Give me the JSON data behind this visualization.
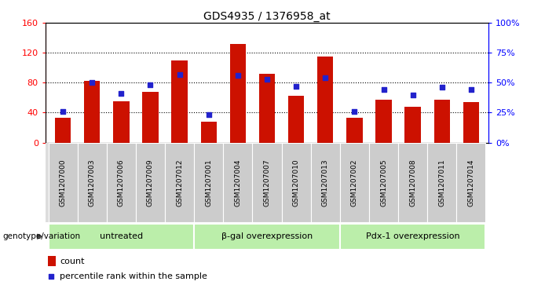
{
  "title": "GDS4935 / 1376958_at",
  "samples": [
    "GSM1207000",
    "GSM1207003",
    "GSM1207006",
    "GSM1207009",
    "GSM1207012",
    "GSM1207001",
    "GSM1207004",
    "GSM1207007",
    "GSM1207010",
    "GSM1207013",
    "GSM1207002",
    "GSM1207005",
    "GSM1207008",
    "GSM1207011",
    "GSM1207014"
  ],
  "counts": [
    33,
    82,
    55,
    68,
    110,
    28,
    132,
    92,
    62,
    115,
    33,
    57,
    48,
    57,
    54
  ],
  "percentiles": [
    26,
    50,
    41,
    48,
    57,
    23,
    56,
    53,
    47,
    54,
    26,
    44,
    40,
    46,
    44
  ],
  "groups": [
    {
      "label": "untreated",
      "start": 0,
      "end": 5
    },
    {
      "label": "β-gal overexpression",
      "start": 5,
      "end": 10
    },
    {
      "label": "Pdx-1 overexpression",
      "start": 10,
      "end": 15
    }
  ],
  "bar_color": "#cc1100",
  "dot_color": "#2222cc",
  "ylim_left": [
    0,
    160
  ],
  "ylim_right": [
    0,
    100
  ],
  "yticks_left": [
    0,
    40,
    80,
    120,
    160
  ],
  "ytick_labels_left": [
    "0",
    "40",
    "80",
    "120",
    "160"
  ],
  "yticks_right": [
    0,
    25,
    50,
    75,
    100
  ],
  "ytick_labels_right": [
    "0%",
    "25%",
    "50%",
    "75%",
    "100%"
  ],
  "group_bg_color": "#bbeeaa",
  "tick_bg_color": "#cccccc",
  "legend_count_color": "#cc1100",
  "legend_dot_color": "#2222cc",
  "legend_count_label": "count",
  "legend_dot_label": "percentile rank within the sample",
  "genotype_label": "genotype/variation",
  "bar_width": 0.55,
  "gridline_color": "#000000",
  "gridline_ticks": [
    40,
    80,
    120
  ]
}
